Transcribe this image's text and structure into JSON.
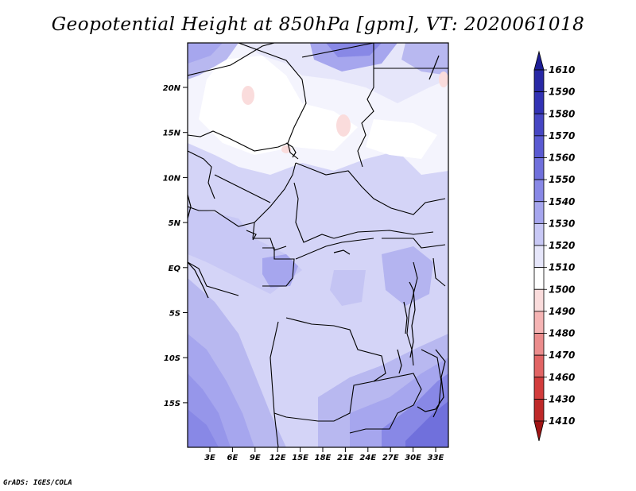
{
  "title": "Geopotential Height at 850hPa [gpm], VT: 2020061018",
  "credit": "GrADS: IGES/COLA",
  "map": {
    "lat_labels": [
      "20N",
      "15N",
      "10N",
      "5N",
      "EQ",
      "5S",
      "10S",
      "15S"
    ],
    "lon_labels": [
      "3E",
      "6E",
      "9E",
      "12E",
      "15E",
      "18E",
      "21E",
      "24E",
      "27E",
      "30E",
      "33E"
    ]
  },
  "colorbar": {
    "levels": [
      "1610",
      "1590",
      "1580",
      "1570",
      "1560",
      "1550",
      "1540",
      "1530",
      "1520",
      "1510",
      "1500",
      "1490",
      "1480",
      "1470",
      "1460",
      "1430",
      "1410"
    ],
    "colors": [
      "#1e1e96",
      "#2828a5",
      "#3232b4",
      "#4646c3",
      "#5a5ad2",
      "#7070dc",
      "#8888e6",
      "#a6a6ee",
      "#c8c8f5",
      "#e6e6fa",
      "#ffffff",
      "#fadcdc",
      "#f5b4b4",
      "#eb8c8c",
      "#e16464",
      "#d23c3c",
      "#be2828",
      "#a01414"
    ]
  }
}
